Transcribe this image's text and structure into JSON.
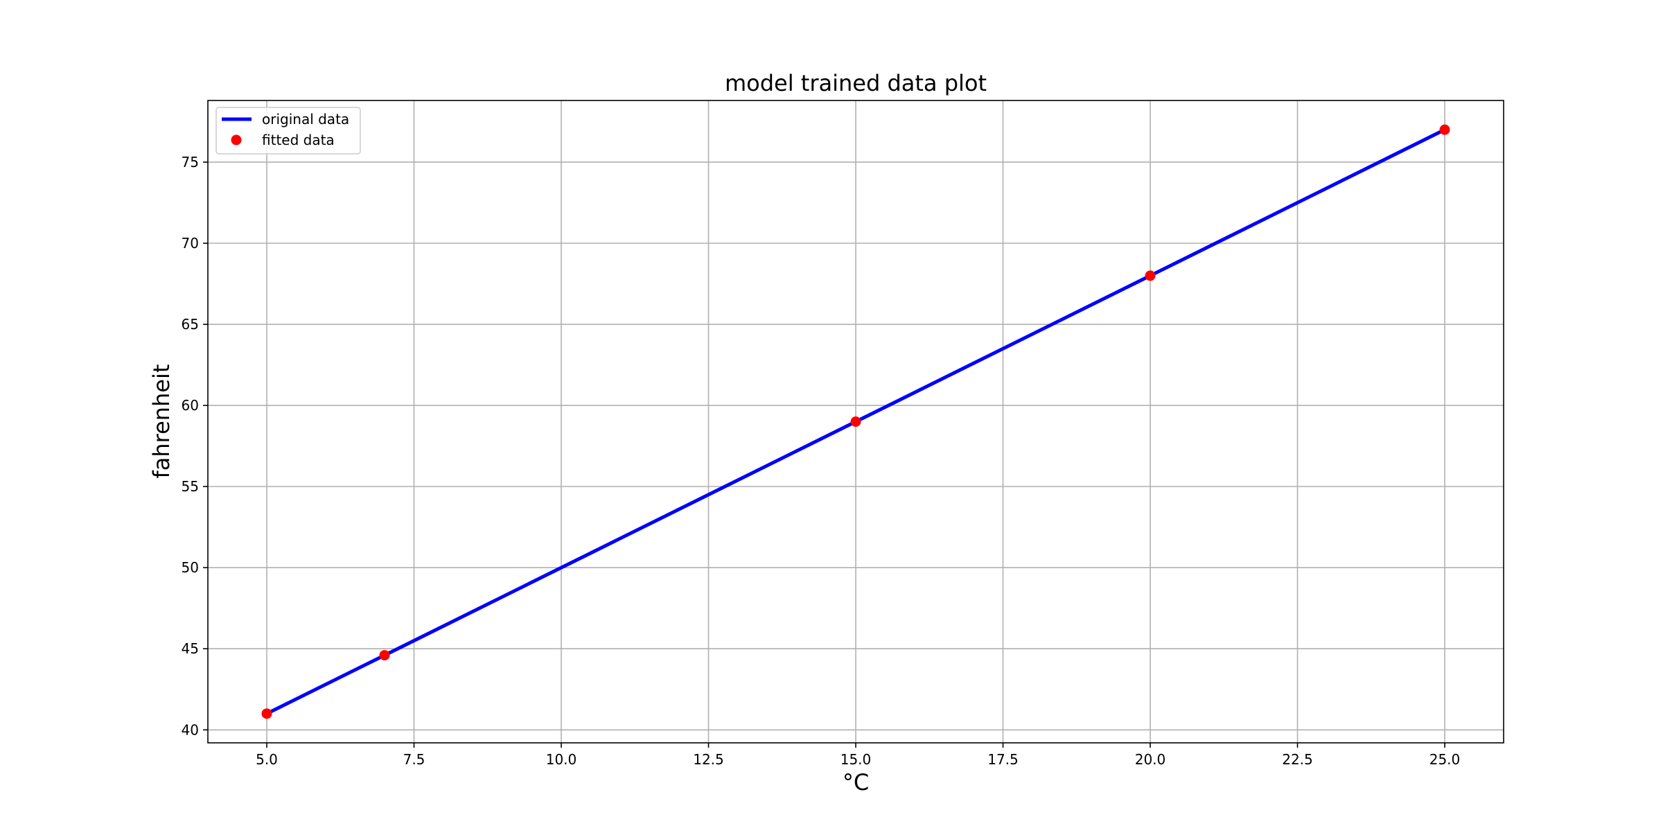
{
  "chart_data": {
    "type": "line",
    "title": "model trained data plot",
    "xlabel": "°C",
    "ylabel": "fahrenheit",
    "xlim": [
      4.0,
      26.0
    ],
    "ylim": [
      39.2,
      78.8
    ],
    "grid": true,
    "legend_position": "top-left",
    "x_ticks": [
      5.0,
      7.5,
      10.0,
      12.5,
      15.0,
      17.5,
      20.0,
      22.5,
      25.0
    ],
    "x_tick_labels": [
      "5.0",
      "7.5",
      "10.0",
      "12.5",
      "15.0",
      "17.5",
      "20.0",
      "22.5",
      "25.0"
    ],
    "y_ticks": [
      40,
      45,
      50,
      55,
      60,
      65,
      70,
      75
    ],
    "y_tick_labels": [
      "40",
      "45",
      "50",
      "55",
      "60",
      "65",
      "70",
      "75"
    ],
    "series": [
      {
        "name": "original data",
        "style": "line",
        "color": "#0000ff",
        "x": [
          5,
          7,
          15,
          20,
          25
        ],
        "y": [
          41.0,
          44.6,
          59.0,
          68.0,
          77.0
        ]
      },
      {
        "name": "fitted data",
        "style": "markers",
        "color": "#ff0000",
        "x": [
          5,
          7,
          15,
          20,
          25
        ],
        "y": [
          41.0,
          44.6,
          59.0,
          68.0,
          77.0
        ]
      }
    ]
  }
}
